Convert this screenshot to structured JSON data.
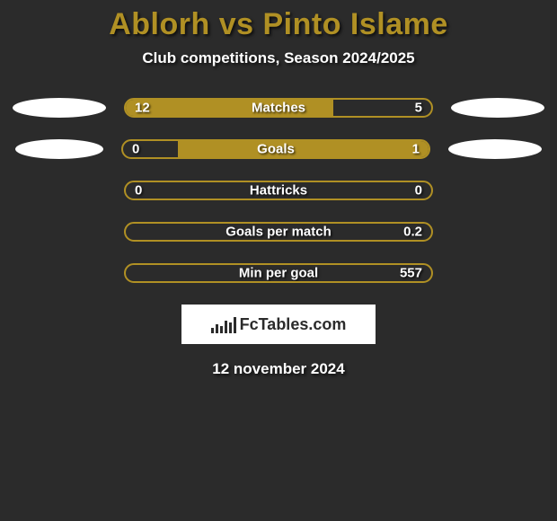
{
  "title": {
    "text": "Ablorh vs Pinto Islame",
    "color": "#b09024",
    "fontsize": 34
  },
  "subtitle": {
    "text": "Club competitions, Season 2024/2025",
    "color": "#ffffff",
    "fontsize": 17
  },
  "colors": {
    "background": "#2b2b2b",
    "bar_fill": "#b09024",
    "bar_border": "#b09024",
    "ellipse": "#ffffff",
    "text": "#ffffff"
  },
  "rows": [
    {
      "label": "Matches",
      "left_value": "12",
      "right_value": "5",
      "left_fill_pct": 68,
      "right_fill_pct": 0,
      "show_left_ellipse": true,
      "show_right_ellipse": true,
      "left_ellipse_small": false
    },
    {
      "label": "Goals",
      "left_value": "0",
      "right_value": "1",
      "left_fill_pct": 0,
      "right_fill_pct": 82,
      "show_left_ellipse": true,
      "show_right_ellipse": true,
      "left_ellipse_small": true
    },
    {
      "label": "Hattricks",
      "left_value": "0",
      "right_value": "0",
      "left_fill_pct": 0,
      "right_fill_pct": 0,
      "show_left_ellipse": false,
      "show_right_ellipse": false,
      "left_ellipse_small": false
    },
    {
      "label": "Goals per match",
      "left_value": "",
      "right_value": "0.2",
      "left_fill_pct": 0,
      "right_fill_pct": 0,
      "show_left_ellipse": false,
      "show_right_ellipse": false,
      "left_ellipse_small": false
    },
    {
      "label": "Min per goal",
      "left_value": "",
      "right_value": "557",
      "left_fill_pct": 0,
      "right_fill_pct": 0,
      "show_left_ellipse": false,
      "show_right_ellipse": false,
      "left_ellipse_small": false
    }
  ],
  "brand": {
    "text": "FcTables.com",
    "background": "#ffffff",
    "text_color": "#2b2b2b"
  },
  "date": {
    "text": "12 november 2024",
    "color": "#ffffff"
  }
}
